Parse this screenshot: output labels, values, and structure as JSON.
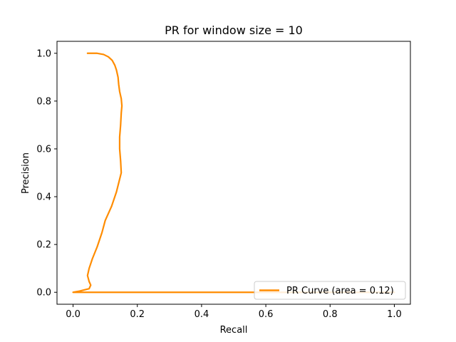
{
  "chart_data": {
    "type": "line",
    "title": "PR for window size = 10",
    "xlabel": "Recall",
    "ylabel": "Precision",
    "xlim": [
      -0.05,
      1.05
    ],
    "ylim": [
      -0.05,
      1.05
    ],
    "xticks": [
      0.0,
      0.2,
      0.4,
      0.6,
      0.8,
      1.0
    ],
    "yticks": [
      0.0,
      0.2,
      0.4,
      0.6,
      0.8,
      1.0
    ],
    "tick_labels_x": [
      "0.0",
      "0.2",
      "0.4",
      "0.6",
      "0.8",
      "1.0"
    ],
    "tick_labels_y": [
      "0.0",
      "0.2",
      "0.4",
      "0.6",
      "0.8",
      "1.0"
    ],
    "grid": false,
    "legend_position": "lower right",
    "series": [
      {
        "name": "PR Curve (area = 0.12)",
        "color": "#ff8c00",
        "x": [
          1.0,
          0.55,
          0.3,
          0.1,
          0.06,
          0.04,
          0.0,
          0.02,
          0.05,
          0.055,
          0.05,
          0.045,
          0.05,
          0.06,
          0.075,
          0.09,
          0.1,
          0.12,
          0.135,
          0.15,
          0.148,
          0.145,
          0.145,
          0.148,
          0.15,
          0.152,
          0.15,
          0.145,
          0.142,
          0.14,
          0.135,
          0.13,
          0.122,
          0.11,
          0.095,
          0.075,
          0.045
        ],
        "y": [
          0.0,
          0.0,
          0.0,
          0.0,
          0.0,
          0.0,
          0.0,
          0.005,
          0.015,
          0.03,
          0.045,
          0.07,
          0.1,
          0.14,
          0.19,
          0.25,
          0.3,
          0.36,
          0.42,
          0.5,
          0.55,
          0.6,
          0.65,
          0.7,
          0.75,
          0.78,
          0.81,
          0.84,
          0.87,
          0.9,
          0.93,
          0.95,
          0.97,
          0.985,
          0.995,
          1.0,
          1.0
        ]
      }
    ]
  }
}
